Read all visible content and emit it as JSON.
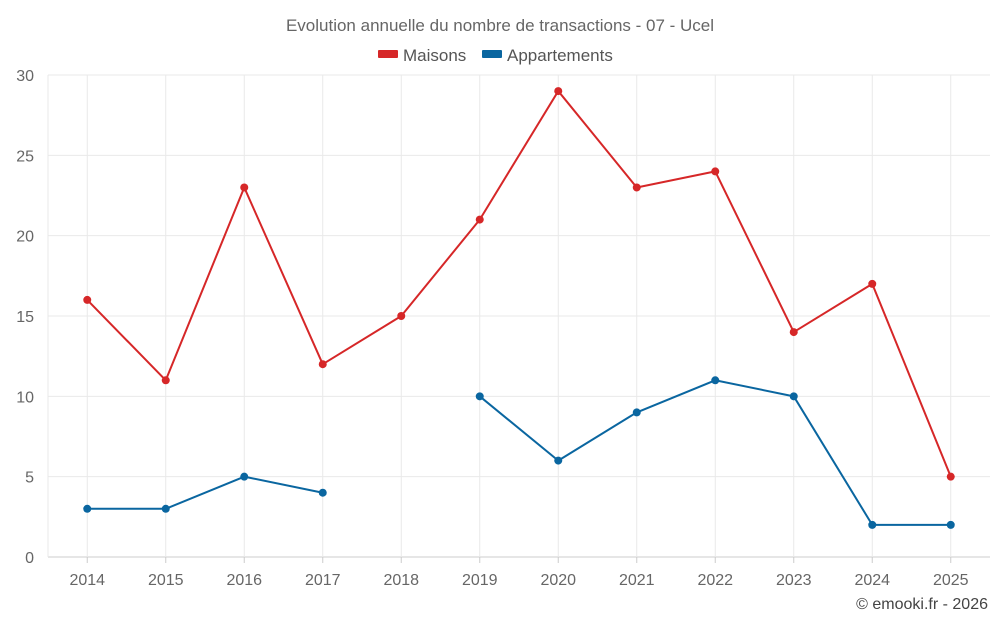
{
  "chart_data": {
    "type": "line",
    "title": "Evolution annuelle du nombre de transactions - 07 - Ucel",
    "categories": [
      "2014",
      "2015",
      "2016",
      "2017",
      "2018",
      "2019",
      "2020",
      "2021",
      "2022",
      "2023",
      "2024",
      "2025"
    ],
    "series": [
      {
        "name": "Maisons",
        "color": "#d62728",
        "values": [
          16,
          11,
          23,
          12,
          15,
          21,
          29,
          23,
          24,
          14,
          17,
          5
        ]
      },
      {
        "name": "Appartements",
        "color": "#0a66a0",
        "values": [
          3,
          3,
          5,
          4,
          null,
          10,
          6,
          9,
          11,
          10,
          2,
          2
        ]
      }
    ],
    "ylim": [
      0,
      30
    ],
    "yticks": [
      0,
      5,
      10,
      15,
      20,
      25,
      30
    ],
    "grid": true,
    "legend": "top-center",
    "xlabel": "",
    "ylabel": ""
  },
  "credit": "© emooki.fr - 2026"
}
